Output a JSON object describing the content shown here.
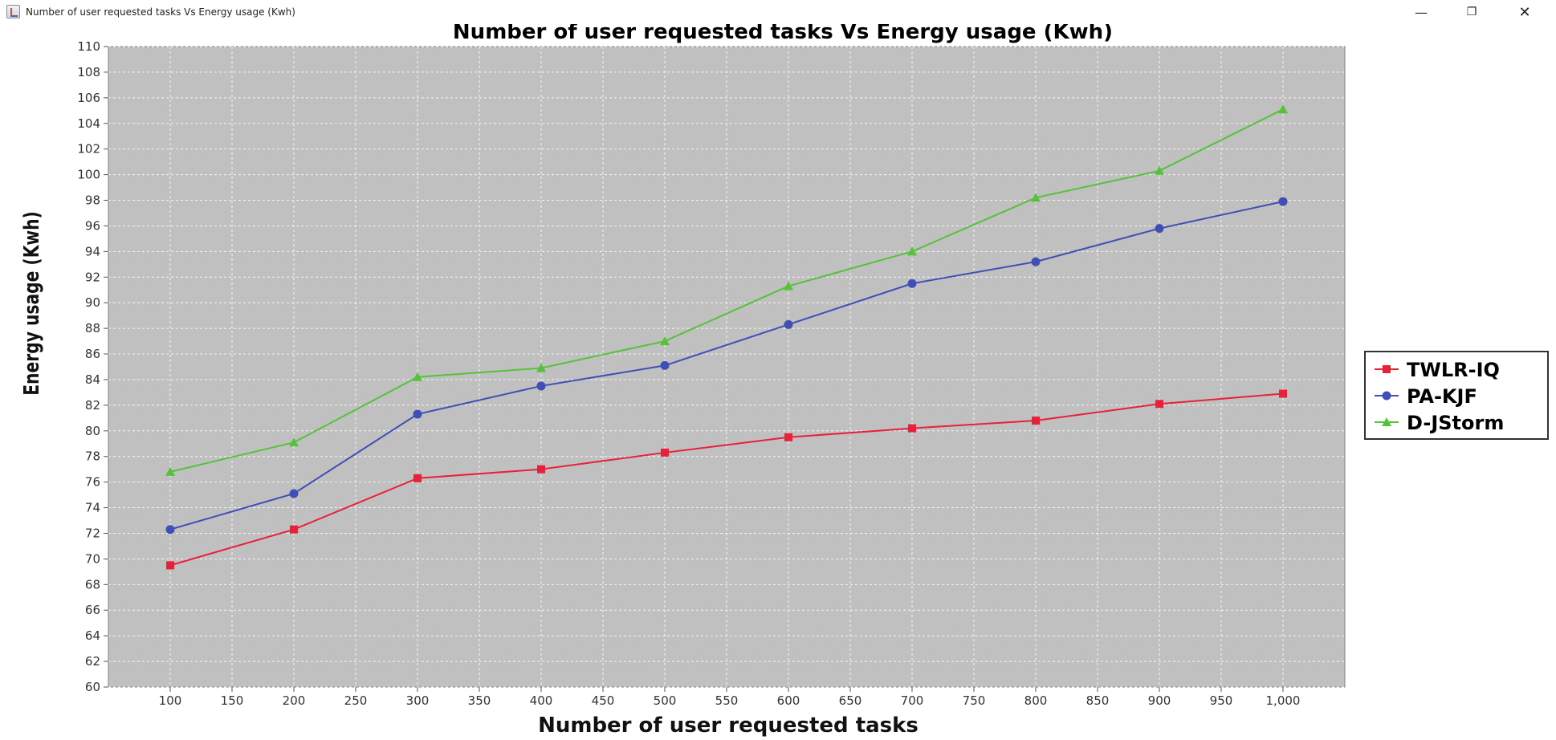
{
  "window": {
    "title": "Number of user requested tasks Vs Energy usage (Kwh)",
    "app_icon": "java-app-icon",
    "controls": {
      "minimize": "—",
      "restore": "❐",
      "close": "✕"
    }
  },
  "chart_data": {
    "type": "line",
    "title": "Number of user requested tasks Vs Energy usage (Kwh)",
    "xlabel": "Number of user requested tasks",
    "ylabel": "Energy usage (Kwh)",
    "xlim": [
      50,
      1050
    ],
    "ylim": [
      60,
      110
    ],
    "x_ticks": [
      100,
      150,
      200,
      250,
      300,
      350,
      400,
      450,
      500,
      550,
      600,
      650,
      700,
      750,
      800,
      850,
      900,
      950,
      1000
    ],
    "x_tick_labels": [
      "100",
      "150",
      "200",
      "250",
      "300",
      "350",
      "400",
      "450",
      "500",
      "550",
      "600",
      "650",
      "700",
      "750",
      "800",
      "850",
      "900",
      "950",
      "1,000"
    ],
    "y_ticks": [
      60,
      62,
      64,
      66,
      68,
      70,
      72,
      74,
      76,
      78,
      80,
      82,
      84,
      86,
      88,
      90,
      92,
      94,
      96,
      98,
      100,
      102,
      104,
      106,
      108,
      110
    ],
    "grid": true,
    "plot_background": "#c0c0c0",
    "legend_position": "right",
    "x": [
      100,
      200,
      300,
      400,
      500,
      600,
      700,
      800,
      900,
      1000
    ],
    "series": [
      {
        "name": "TWLR-IQ",
        "color": "#e8213a",
        "marker": "square",
        "values": [
          69.5,
          72.3,
          76.3,
          77.0,
          78.3,
          79.5,
          80.2,
          80.8,
          82.1,
          82.9
        ]
      },
      {
        "name": "PA-KJF",
        "color": "#3f4fb5",
        "marker": "circle",
        "values": [
          72.3,
          75.1,
          81.3,
          83.5,
          85.1,
          88.3,
          91.5,
          93.2,
          95.8,
          97.9
        ]
      },
      {
        "name": "D-JStorm",
        "color": "#55c23a",
        "marker": "triangle",
        "values": [
          76.8,
          79.1,
          84.2,
          84.9,
          87.0,
          91.3,
          94.0,
          98.2,
          100.3,
          105.1
        ]
      }
    ]
  }
}
